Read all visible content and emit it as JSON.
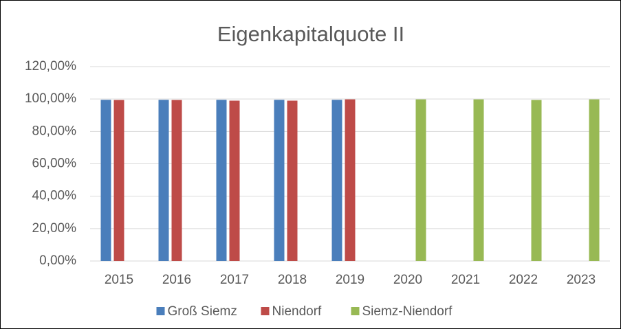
{
  "chart_data": {
    "type": "bar",
    "title": "Eigenkapitalquote II",
    "categories": [
      "2015",
      "2016",
      "2017",
      "2018",
      "2019",
      "2020",
      "2021",
      "2022",
      "2023"
    ],
    "series": [
      {
        "name": "Groß Siemz",
        "color": "#4a7ebb",
        "values": [
          99.5,
          99.5,
          99.5,
          99.5,
          99.5,
          null,
          null,
          null,
          null
        ]
      },
      {
        "name": "Niendorf",
        "color": "#be4b48",
        "values": [
          99.4,
          99.4,
          99.0,
          99.0,
          99.8,
          null,
          null,
          null,
          null
        ]
      },
      {
        "name": "Siemz-Niendorf",
        "color": "#98b954",
        "values": [
          null,
          null,
          null,
          null,
          null,
          99.8,
          99.8,
          99.4,
          99.8
        ]
      }
    ],
    "ylim": [
      0,
      120
    ],
    "yticks": [
      {
        "value": 0,
        "label": "0,00%"
      },
      {
        "value": 20,
        "label": "20,00%"
      },
      {
        "value": 40,
        "label": "40,00%"
      },
      {
        "value": 60,
        "label": "60,00%"
      },
      {
        "value": 80,
        "label": "80,00%"
      },
      {
        "value": 100,
        "label": "100,00%"
      },
      {
        "value": 120,
        "label": "120,00%"
      }
    ],
    "grid": true,
    "legend": "bottom"
  }
}
